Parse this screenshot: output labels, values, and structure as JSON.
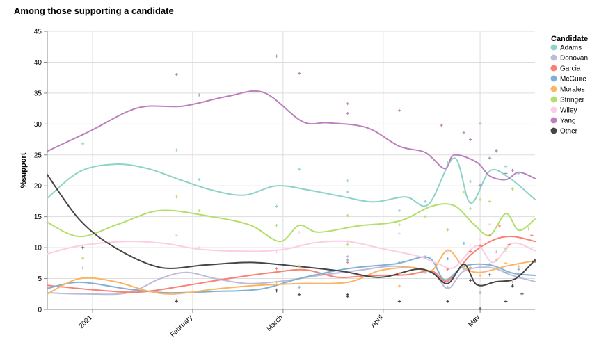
{
  "chart_data": {
    "type": "line",
    "title": "Among those supporting a candidate",
    "xlabel": "",
    "ylabel": "%support",
    "x_range": [
      "2020-12-18",
      "2021-05-18"
    ],
    "ylim": [
      0,
      45
    ],
    "y_ticks": [
      0,
      5,
      10,
      15,
      20,
      25,
      30,
      35,
      40,
      45
    ],
    "x_ticks": [
      {
        "date": "2021-01-01",
        "label": "2021"
      },
      {
        "date": "2021-02-01",
        "label": "February"
      },
      {
        "date": "2021-03-01",
        "label": "March"
      },
      {
        "date": "2021-04-01",
        "label": "April"
      },
      {
        "date": "2021-05-01",
        "label": "May"
      }
    ],
    "grid": true,
    "legend": {
      "title": "Candidate",
      "placement": "right"
    },
    "series": [
      {
        "name": "Adams",
        "color": "#8dd3c7",
        "trend": [
          [
            "2020-12-18",
            18
          ],
          [
            "2020-12-28",
            22.3
          ],
          [
            "2021-01-08",
            23.5
          ],
          [
            "2021-01-18",
            22.8
          ],
          [
            "2021-01-28",
            21
          ],
          [
            "2021-02-07",
            19.3
          ],
          [
            "2021-02-17",
            18.5
          ],
          [
            "2021-02-27",
            20
          ],
          [
            "2021-03-09",
            19.3
          ],
          [
            "2021-03-19",
            18.3
          ],
          [
            "2021-03-29",
            17.4
          ],
          [
            "2021-04-08",
            18.2
          ],
          [
            "2021-04-15",
            17
          ],
          [
            "2021-04-23",
            24.5
          ],
          [
            "2021-04-28",
            17.2
          ],
          [
            "2021-05-04",
            22.4
          ],
          [
            "2021-05-10",
            21.3
          ],
          [
            "2021-05-18",
            17.8
          ]
        ],
        "points": [
          [
            "2020-12-29",
            26.8
          ],
          [
            "2021-01-27",
            25.8
          ],
          [
            "2021-02-03",
            21
          ],
          [
            "2021-02-27",
            16.7
          ],
          [
            "2021-03-06",
            22.7
          ],
          [
            "2021-03-21",
            20.8
          ],
          [
            "2021-03-21",
            19
          ],
          [
            "2021-04-06",
            16
          ],
          [
            "2021-04-14",
            17.5
          ],
          [
            "2021-04-21",
            23.7
          ],
          [
            "2021-04-28",
            20.7
          ],
          [
            "2021-05-01",
            30.1
          ],
          [
            "2021-05-04",
            24.5
          ],
          [
            "2021-05-06",
            25.6
          ],
          [
            "2021-05-09",
            23.1
          ],
          [
            "2021-05-13",
            22
          ]
        ]
      },
      {
        "name": "Donovan",
        "color": "#bebada",
        "trend": [
          [
            "2020-12-18",
            2.7
          ],
          [
            "2020-12-30",
            2.5
          ],
          [
            "2021-01-12",
            2.7
          ],
          [
            "2021-01-22",
            5
          ],
          [
            "2021-01-30",
            6
          ],
          [
            "2021-02-08",
            5
          ],
          [
            "2021-02-18",
            4.2
          ],
          [
            "2021-03-01",
            4.6
          ],
          [
            "2021-03-12",
            5.5
          ],
          [
            "2021-03-24",
            6.3
          ],
          [
            "2021-04-05",
            7
          ],
          [
            "2021-04-16",
            6
          ],
          [
            "2021-04-21",
            3.4
          ],
          [
            "2021-04-26",
            6.2
          ],
          [
            "2021-05-04",
            6.8
          ],
          [
            "2021-05-11",
            5.5
          ],
          [
            "2021-05-18",
            4.5
          ]
        ],
        "points": [
          [
            "2021-02-27",
            3.2
          ],
          [
            "2021-03-21",
            8.6
          ],
          [
            "2021-04-14",
            6
          ],
          [
            "2021-04-21",
            3.6
          ],
          [
            "2021-04-26",
            6.5
          ],
          [
            "2021-05-01",
            7
          ],
          [
            "2021-05-06",
            9.3
          ],
          [
            "2021-05-11",
            4.5
          ]
        ]
      },
      {
        "name": "Garcia",
        "color": "#fb8072",
        "trend": [
          [
            "2020-12-18",
            3.9
          ],
          [
            "2021-01-01",
            3.2
          ],
          [
            "2021-01-15",
            2.8
          ],
          [
            "2021-01-29",
            3.8
          ],
          [
            "2021-02-12",
            5
          ],
          [
            "2021-02-26",
            6
          ],
          [
            "2021-03-08",
            6.4
          ],
          [
            "2021-03-18",
            5.2
          ],
          [
            "2021-03-28",
            5.5
          ],
          [
            "2021-04-08",
            5.6
          ],
          [
            "2021-04-16",
            6.2
          ],
          [
            "2021-04-21",
            4.6
          ],
          [
            "2021-04-28",
            8.8
          ],
          [
            "2021-05-05",
            11.2
          ],
          [
            "2021-05-11",
            11.8
          ],
          [
            "2021-05-18",
            11
          ]
        ],
        "points": [
          [
            "2021-01-27",
            1.5
          ],
          [
            "2021-02-27",
            6.6
          ],
          [
            "2021-03-21",
            7.6
          ],
          [
            "2021-04-06",
            5.8
          ],
          [
            "2021-04-21",
            6.5
          ],
          [
            "2021-04-28",
            9.4
          ],
          [
            "2021-05-01",
            10.3
          ],
          [
            "2021-05-04",
            12
          ],
          [
            "2021-05-07",
            13.5
          ],
          [
            "2021-05-10",
            10.5
          ],
          [
            "2021-05-14",
            11.5
          ],
          [
            "2021-05-17",
            12
          ]
        ]
      },
      {
        "name": "McGuire",
        "color": "#80b1d3",
        "trend": [
          [
            "2020-12-18",
            3.4
          ],
          [
            "2020-12-28",
            4.4
          ],
          [
            "2021-01-12",
            3.3
          ],
          [
            "2021-01-24",
            2.7
          ],
          [
            "2021-02-07",
            2.9
          ],
          [
            "2021-02-22",
            3.3
          ],
          [
            "2021-03-06",
            5
          ],
          [
            "2021-03-21",
            6.6
          ],
          [
            "2021-04-05",
            7.4
          ],
          [
            "2021-04-15",
            8.4
          ],
          [
            "2021-04-20",
            4.8
          ],
          [
            "2021-04-26",
            7
          ],
          [
            "2021-05-04",
            7.2
          ],
          [
            "2021-05-11",
            5.9
          ],
          [
            "2021-05-18",
            5.5
          ]
        ],
        "points": [
          [
            "2020-12-29",
            6.7
          ],
          [
            "2021-03-06",
            3.6
          ],
          [
            "2021-03-21",
            8
          ],
          [
            "2021-04-06",
            7.6
          ],
          [
            "2021-04-14",
            8.5
          ],
          [
            "2021-04-21",
            8.2
          ],
          [
            "2021-04-26",
            10.7
          ],
          [
            "2021-05-01",
            2.7
          ],
          [
            "2021-05-04",
            7.3
          ],
          [
            "2021-05-09",
            6
          ],
          [
            "2021-05-13",
            6.5
          ]
        ]
      },
      {
        "name": "Morales",
        "color": "#fdb462",
        "trend": [
          [
            "2020-12-18",
            2.5
          ],
          [
            "2020-12-28",
            5
          ],
          [
            "2021-01-08",
            4.5
          ],
          [
            "2021-01-18",
            3
          ],
          [
            "2021-01-26",
            2.5
          ],
          [
            "2021-02-08",
            3.3
          ],
          [
            "2021-02-21",
            3.9
          ],
          [
            "2021-03-06",
            4.2
          ],
          [
            "2021-03-21",
            4.4
          ],
          [
            "2021-03-31",
            6.3
          ],
          [
            "2021-04-10",
            6.8
          ],
          [
            "2021-04-16",
            6.3
          ],
          [
            "2021-04-21",
            9.6
          ],
          [
            "2021-04-26",
            6.8
          ],
          [
            "2021-05-01",
            6
          ],
          [
            "2021-05-09",
            7
          ],
          [
            "2021-05-18",
            7.9
          ]
        ],
        "points": [
          [
            "2021-02-27",
            4.4
          ],
          [
            "2021-04-06",
            3.8
          ],
          [
            "2021-04-21",
            9.5
          ],
          [
            "2021-04-28",
            6.8
          ],
          [
            "2021-05-01",
            5.5
          ],
          [
            "2021-05-06",
            8
          ],
          [
            "2021-05-09",
            7.5
          ],
          [
            "2021-05-13",
            7
          ]
        ]
      },
      {
        "name": "Stringer",
        "color": "#b3de69",
        "trend": [
          [
            "2020-12-18",
            14.1
          ],
          [
            "2020-12-28",
            11.8
          ],
          [
            "2021-01-09",
            13.8
          ],
          [
            "2021-01-22",
            16
          ],
          [
            "2021-02-07",
            15
          ],
          [
            "2021-02-19",
            13.6
          ],
          [
            "2021-02-28",
            11
          ],
          [
            "2021-03-06",
            13.6
          ],
          [
            "2021-03-12",
            12.5
          ],
          [
            "2021-03-24",
            13.5
          ],
          [
            "2021-04-06",
            14.3
          ],
          [
            "2021-04-16",
            16.7
          ],
          [
            "2021-04-23",
            16.8
          ],
          [
            "2021-04-29",
            13.8
          ],
          [
            "2021-05-04",
            12
          ],
          [
            "2021-05-09",
            15.5
          ],
          [
            "2021-05-13",
            12.8
          ],
          [
            "2021-05-18",
            14.6
          ]
        ],
        "points": [
          [
            "2020-12-29",
            8.3
          ],
          [
            "2021-01-27",
            18.2
          ],
          [
            "2021-02-03",
            16
          ],
          [
            "2021-02-27",
            13.6
          ],
          [
            "2021-03-06",
            7
          ],
          [
            "2021-03-21",
            15.2
          ],
          [
            "2021-03-21",
            10.5
          ],
          [
            "2021-04-06",
            13.7
          ],
          [
            "2021-04-14",
            15
          ],
          [
            "2021-04-21",
            12.9
          ],
          [
            "2021-04-26",
            19
          ],
          [
            "2021-04-28",
            16.3
          ],
          [
            "2021-05-01",
            17.8
          ],
          [
            "2021-05-04",
            17.5
          ],
          [
            "2021-05-09",
            9.8
          ],
          [
            "2021-05-11",
            19.5
          ],
          [
            "2021-05-16",
            13
          ]
        ]
      },
      {
        "name": "Wiley",
        "color": "#fccde5",
        "trend": [
          [
            "2020-12-18",
            9
          ],
          [
            "2020-12-28",
            10.3
          ],
          [
            "2021-01-11",
            11
          ],
          [
            "2021-01-23",
            10.7
          ],
          [
            "2021-02-04",
            9.7
          ],
          [
            "2021-02-19",
            9.4
          ],
          [
            "2021-03-01",
            9.7
          ],
          [
            "2021-03-11",
            10.8
          ],
          [
            "2021-03-21",
            11
          ],
          [
            "2021-04-01",
            9.8
          ],
          [
            "2021-04-12",
            8.6
          ],
          [
            "2021-04-18",
            7.4
          ],
          [
            "2021-04-23",
            6.8
          ],
          [
            "2021-04-30",
            10.3
          ],
          [
            "2021-05-05",
            7.6
          ],
          [
            "2021-05-11",
            10.7
          ],
          [
            "2021-05-18",
            9.5
          ]
        ],
        "points": [
          [
            "2021-01-27",
            12
          ],
          [
            "2021-02-03",
            10
          ],
          [
            "2021-02-27",
            9.3
          ],
          [
            "2021-03-06",
            12.5
          ],
          [
            "2021-03-21",
            11
          ],
          [
            "2021-04-06",
            12.3
          ],
          [
            "2021-04-21",
            9.4
          ],
          [
            "2021-04-28",
            10.4
          ],
          [
            "2021-05-01",
            11.3
          ],
          [
            "2021-05-04",
            13.8
          ],
          [
            "2021-05-09",
            9.4
          ]
        ]
      },
      {
        "name": "Yang",
        "color": "#bc80bd",
        "trend": [
          [
            "2020-12-18",
            25.6
          ],
          [
            "2020-12-31",
            28.8
          ],
          [
            "2021-01-15",
            32.6
          ],
          [
            "2021-01-29",
            32.9
          ],
          [
            "2021-02-12",
            34.5
          ],
          [
            "2021-02-23",
            35.1
          ],
          [
            "2021-03-07",
            30.4
          ],
          [
            "2021-03-15",
            30.2
          ],
          [
            "2021-03-27",
            29.4
          ],
          [
            "2021-04-06",
            26.4
          ],
          [
            "2021-04-14",
            25.4
          ],
          [
            "2021-04-20",
            22.8
          ],
          [
            "2021-04-23",
            25
          ],
          [
            "2021-04-30",
            23.8
          ],
          [
            "2021-05-04",
            21.6
          ],
          [
            "2021-05-09",
            21
          ],
          [
            "2021-05-13",
            22.2
          ],
          [
            "2021-05-18",
            21.2
          ]
        ],
        "points": [
          [
            "2020-12-29",
            28.3
          ],
          [
            "2021-01-27",
            38
          ],
          [
            "2021-02-03",
            34.7
          ],
          [
            "2021-02-27",
            41
          ],
          [
            "2021-03-06",
            38.2
          ],
          [
            "2021-03-21",
            33.3
          ],
          [
            "2021-03-21",
            31.7
          ],
          [
            "2021-04-06",
            32.2
          ],
          [
            "2021-04-19",
            29.8
          ],
          [
            "2021-04-26",
            28.6
          ],
          [
            "2021-04-28",
            27.5
          ],
          [
            "2021-05-01",
            20.1
          ],
          [
            "2021-05-04",
            24.5
          ],
          [
            "2021-05-06",
            25.7
          ],
          [
            "2021-05-09",
            22
          ],
          [
            "2021-05-11",
            22.5
          ]
        ]
      },
      {
        "name": "Other",
        "color": "#454545",
        "trend": [
          [
            "2020-12-18",
            21.8
          ],
          [
            "2020-12-28",
            14.5
          ],
          [
            "2021-01-08",
            10
          ],
          [
            "2021-01-22",
            6.8
          ],
          [
            "2021-02-05",
            7.2
          ],
          [
            "2021-02-19",
            7.6
          ],
          [
            "2021-03-05",
            7
          ],
          [
            "2021-03-19",
            6.2
          ],
          [
            "2021-03-31",
            5.2
          ],
          [
            "2021-04-11",
            6.5
          ],
          [
            "2021-04-16",
            6
          ],
          [
            "2021-04-21",
            4.2
          ],
          [
            "2021-04-26",
            7.3
          ],
          [
            "2021-04-30",
            4
          ],
          [
            "2021-05-06",
            4.5
          ],
          [
            "2021-05-12",
            5
          ],
          [
            "2021-05-18",
            8
          ]
        ],
        "points": [
          [
            "2020-12-29",
            10
          ],
          [
            "2021-01-27",
            1.3
          ],
          [
            "2021-02-27",
            3
          ],
          [
            "2021-03-06",
            2.4
          ],
          [
            "2021-03-21",
            2.4
          ],
          [
            "2021-03-21",
            2.1
          ],
          [
            "2021-04-06",
            1.3
          ],
          [
            "2021-04-21",
            1.3
          ],
          [
            "2021-04-28",
            4.7
          ],
          [
            "2021-05-01",
            0.1
          ],
          [
            "2021-05-04",
            5.6
          ],
          [
            "2021-05-09",
            1.3
          ],
          [
            "2021-05-11",
            3.8
          ],
          [
            "2021-05-14",
            2.5
          ],
          [
            "2021-05-18",
            7.8
          ]
        ]
      }
    ]
  }
}
